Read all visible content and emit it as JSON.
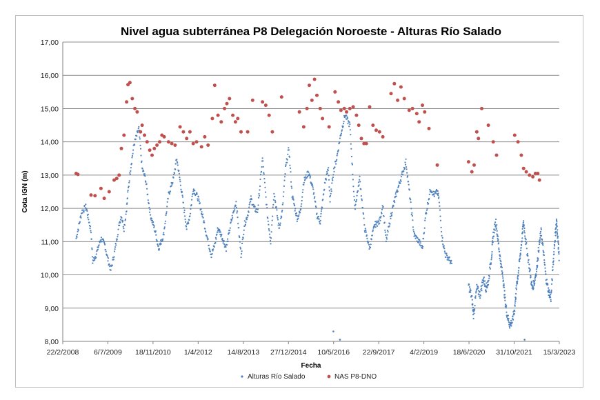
{
  "chart_data": {
    "type": "scatter",
    "title": "Nivel agua subterránea P8 Delegación Noroeste - Alturas Río Salado",
    "xlabel": "Fecha",
    "ylabel": "Cota IGN (m)",
    "ylim": [
      8.0,
      17.0
    ],
    "y_ticks": [
      "8,00",
      "9,00",
      "10,00",
      "11,00",
      "12,00",
      "13,00",
      "14,00",
      "15,00",
      "16,00",
      "17,00"
    ],
    "x_range_years": [
      2008.142,
      2023.203
    ],
    "x_ticks": [
      {
        "label": "22/2/2008",
        "t": 2008.142
      },
      {
        "label": "6/7/2009",
        "t": 2009.51
      },
      {
        "label": "18/11/2010",
        "t": 2010.88
      },
      {
        "label": "1/4/2012",
        "t": 2012.249
      },
      {
        "label": "14/8/2013",
        "t": 2013.619
      },
      {
        "label": "27/12/2014",
        "t": 2014.988
      },
      {
        "label": "10/5/2016",
        "t": 2016.357
      },
      {
        "label": "22/9/2017",
        "t": 2017.726
      },
      {
        "label": "4/2/2019",
        "t": 2019.095
      },
      {
        "label": "18/6/2020",
        "t": 2020.464
      },
      {
        "label": "31/10/2021",
        "t": 2021.833
      },
      {
        "label": "15/3/2023",
        "t": 2023.203
      }
    ],
    "grid": "horizontal",
    "legend_position": "bottom",
    "series": [
      {
        "name": "Alturas Río Salado",
        "color": "#4f81bd",
        "marker": "small-dot",
        "approx_profile": {
          "x": [
            2008.55,
            2008.72,
            2008.85,
            2009.0,
            2009.05,
            2009.15,
            2009.3,
            2009.42,
            2009.5,
            2009.6,
            2009.7,
            2009.85,
            2009.92,
            2010.0,
            2010.08,
            2010.12,
            2010.2,
            2010.3,
            2010.45,
            2010.55,
            2010.65,
            2010.8,
            2010.95,
            2011.05,
            2011.2,
            2011.35,
            2011.5,
            2011.6,
            2011.75,
            2011.9,
            2012.0,
            2012.1,
            2012.25,
            2012.4,
            2012.55,
            2012.65,
            2012.75,
            2012.85,
            2012.95,
            2013.1,
            2013.25,
            2013.4,
            2013.55,
            2013.65,
            2013.75,
            2013.85,
            2013.95,
            2014.05,
            2014.2,
            2014.35,
            2014.45,
            2014.55,
            2014.7,
            2014.8,
            2014.9,
            2015.0,
            2015.1,
            2015.25,
            2015.35,
            2015.45,
            2015.6,
            2015.75,
            2015.85,
            2015.95,
            2016.0,
            2016.1,
            2016.2,
            2016.25,
            2016.35,
            2016.45,
            2016.55,
            2016.7,
            2016.85,
            2017.0,
            2017.15,
            2017.3,
            2017.45,
            2017.6,
            2017.75,
            2017.85,
            2017.95,
            2018.1,
            2018.25,
            2018.4,
            2018.55,
            2018.7,
            2018.8,
            2018.95,
            2019.05,
            2019.15,
            2019.3,
            2019.4,
            2019.5,
            2019.55,
            2019.65,
            2019.75,
            2019.85,
            2019.95
          ],
          "y": [
            11.1,
            11.9,
            12.05,
            11.3,
            10.4,
            10.6,
            11.1,
            10.9,
            10.5,
            10.15,
            10.6,
            11.5,
            11.8,
            11.4,
            12.0,
            12.5,
            13.2,
            13.9,
            14.4,
            13.2,
            12.9,
            11.8,
            11.3,
            10.8,
            11.2,
            12.4,
            12.9,
            13.5,
            12.5,
            11.4,
            11.8,
            12.6,
            12.3,
            11.7,
            11.0,
            10.6,
            10.9,
            11.4,
            11.2,
            10.8,
            11.6,
            12.2,
            10.6,
            11.5,
            11.8,
            12.3,
            12.0,
            11.9,
            13.5,
            11.8,
            11.0,
            12.5,
            11.4,
            11.9,
            13.2,
            13.8,
            12.4,
            11.7,
            11.9,
            12.8,
            13.1,
            12.5,
            11.8,
            11.6,
            12.0,
            12.8,
            13.2,
            12.2,
            13.1,
            13.5,
            14.1,
            14.8,
            14.5,
            12.0,
            12.9,
            11.4,
            10.8,
            11.5,
            11.6,
            12.1,
            11.0,
            11.8,
            12.4,
            12.9,
            13.4,
            12.1,
            11.2,
            11.0,
            10.8,
            11.8,
            12.6,
            12.4,
            12.5,
            12.3,
            11.1,
            10.6,
            10.5,
            10.3
          ]
        },
        "outliers": [
          {
            "x": 2016.35,
            "y": 8.3
          },
          {
            "x": 2016.55,
            "y": 8.05
          },
          {
            "x": 2022.15,
            "y": 8.05
          }
        ]
      },
      {
        "name": "NAS P8-DNO",
        "color": "#c0504d",
        "marker": "dot",
        "points": [
          [
            2008.55,
            13.05
          ],
          [
            2008.6,
            13.02
          ],
          [
            2009.0,
            12.4
          ],
          [
            2009.12,
            12.38
          ],
          [
            2009.3,
            12.6
          ],
          [
            2009.4,
            12.3
          ],
          [
            2009.55,
            12.5
          ],
          [
            2009.7,
            12.85
          ],
          [
            2009.78,
            12.9
          ],
          [
            2009.85,
            13.0
          ],
          [
            2009.92,
            13.8
          ],
          [
            2010.0,
            14.2
          ],
          [
            2010.08,
            15.2
          ],
          [
            2010.12,
            15.72
          ],
          [
            2010.18,
            15.78
          ],
          [
            2010.25,
            15.3
          ],
          [
            2010.33,
            15.0
          ],
          [
            2010.4,
            14.9
          ],
          [
            2010.5,
            14.3
          ],
          [
            2010.55,
            14.5
          ],
          [
            2010.62,
            14.2
          ],
          [
            2010.7,
            14.0
          ],
          [
            2010.78,
            13.75
          ],
          [
            2010.85,
            13.6
          ],
          [
            2010.92,
            13.8
          ],
          [
            2011.0,
            13.9
          ],
          [
            2011.08,
            14.0
          ],
          [
            2011.15,
            14.2
          ],
          [
            2011.22,
            14.15
          ],
          [
            2011.35,
            14.0
          ],
          [
            2011.45,
            13.95
          ],
          [
            2011.55,
            13.9
          ],
          [
            2011.7,
            14.45
          ],
          [
            2011.8,
            14.3
          ],
          [
            2011.9,
            14.1
          ],
          [
            2012.0,
            14.3
          ],
          [
            2012.1,
            13.95
          ],
          [
            2012.2,
            14.0
          ],
          [
            2012.35,
            13.85
          ],
          [
            2012.45,
            14.15
          ],
          [
            2012.55,
            13.9
          ],
          [
            2012.68,
            14.7
          ],
          [
            2012.75,
            15.7
          ],
          [
            2012.85,
            14.8
          ],
          [
            2012.95,
            14.6
          ],
          [
            2013.05,
            15.0
          ],
          [
            2013.12,
            15.15
          ],
          [
            2013.2,
            15.3
          ],
          [
            2013.3,
            14.8
          ],
          [
            2013.38,
            14.6
          ],
          [
            2013.45,
            14.7
          ],
          [
            2013.55,
            14.3
          ],
          [
            2013.75,
            14.3
          ],
          [
            2013.9,
            15.25
          ],
          [
            2014.2,
            15.2
          ],
          [
            2014.3,
            15.1
          ],
          [
            2014.4,
            14.8
          ],
          [
            2014.5,
            14.3
          ],
          [
            2014.78,
            15.35
          ],
          [
            2015.32,
            14.9
          ],
          [
            2015.45,
            14.45
          ],
          [
            2015.55,
            15.0
          ],
          [
            2015.62,
            15.7
          ],
          [
            2015.7,
            15.25
          ],
          [
            2015.78,
            15.88
          ],
          [
            2015.85,
            15.4
          ],
          [
            2015.95,
            15.0
          ],
          [
            2016.02,
            14.7
          ],
          [
            2016.22,
            14.45
          ],
          [
            2016.4,
            15.5
          ],
          [
            2016.5,
            15.2
          ],
          [
            2016.58,
            14.95
          ],
          [
            2016.68,
            15.0
          ],
          [
            2016.75,
            14.9
          ],
          [
            2016.85,
            15.0
          ],
          [
            2016.95,
            15.05
          ],
          [
            2017.05,
            14.8
          ],
          [
            2017.12,
            14.5
          ],
          [
            2017.2,
            14.1
          ],
          [
            2017.28,
            13.95
          ],
          [
            2017.35,
            13.95
          ],
          [
            2017.45,
            15.05
          ],
          [
            2017.55,
            14.5
          ],
          [
            2017.65,
            14.35
          ],
          [
            2017.75,
            14.3
          ],
          [
            2017.85,
            14.15
          ],
          [
            2018.1,
            15.45
          ],
          [
            2018.2,
            15.75
          ],
          [
            2018.3,
            15.25
          ],
          [
            2018.4,
            15.65
          ],
          [
            2018.5,
            15.3
          ],
          [
            2018.65,
            14.95
          ],
          [
            2018.75,
            15.0
          ],
          [
            2018.88,
            14.85
          ],
          [
            2018.95,
            14.6
          ],
          [
            2019.05,
            15.1
          ],
          [
            2019.12,
            14.9
          ],
          [
            2019.25,
            14.4
          ],
          [
            2019.5,
            13.3
          ],
          [
            2020.45,
            13.4
          ],
          [
            2020.55,
            13.1
          ],
          [
            2020.62,
            13.3
          ],
          [
            2020.7,
            14.3
          ],
          [
            2020.75,
            14.1
          ],
          [
            2020.85,
            15.0
          ],
          [
            2021.05,
            14.5
          ],
          [
            2021.2,
            14.0
          ],
          [
            2021.3,
            13.6
          ],
          [
            2021.85,
            14.2
          ],
          [
            2021.95,
            14.0
          ],
          [
            2022.05,
            13.6
          ],
          [
            2022.12,
            13.2
          ],
          [
            2022.2,
            13.1
          ],
          [
            2022.3,
            13.0
          ],
          [
            2022.4,
            12.95
          ],
          [
            2022.48,
            13.05
          ],
          [
            2022.55,
            13.05
          ],
          [
            2022.6,
            12.85
          ]
        ]
      }
    ]
  }
}
